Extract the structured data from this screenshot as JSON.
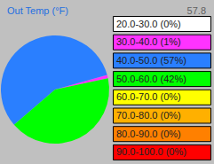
{
  "chart_data": {
    "type": "pie",
    "title": "Out Temp (°F)",
    "annotation": "57.8",
    "categories": [
      "20.0-30.0 (0%)",
      "30.0-40.0 (1%)",
      "40.0-50.0 (57%)",
      "50.0-60.0 (42%)",
      "60.0-70.0 (0%)",
      "70.0-80.0 (0%)",
      "80.0-90.0 (0%)",
      "90.0-100.0 (0%)"
    ],
    "values": [
      0,
      1,
      57,
      42,
      0,
      0,
      0,
      0
    ],
    "colors": [
      "#ffffff",
      "#ff33ff",
      "#2a7fff",
      "#00ff00",
      "#ffff00",
      "#ffb000",
      "#ff8000",
      "#ff0000"
    ],
    "legend": "right"
  }
}
